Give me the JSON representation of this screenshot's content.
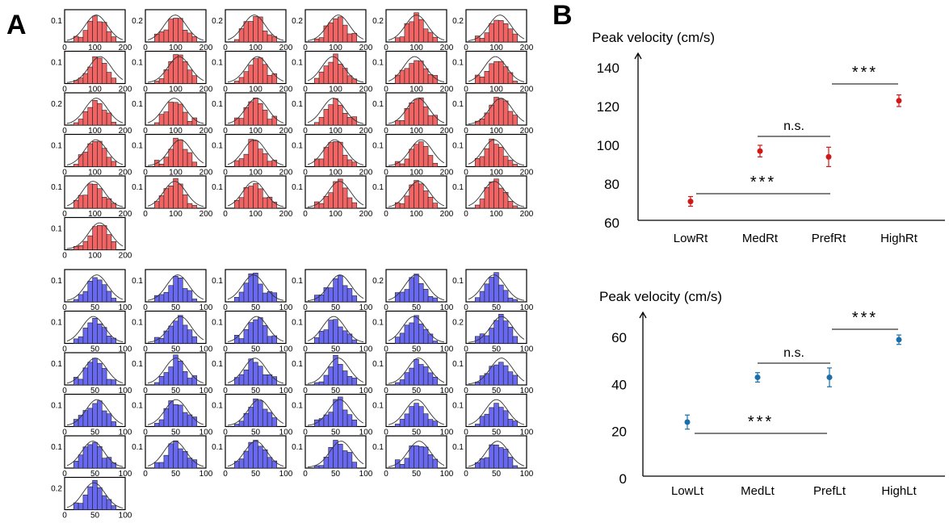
{
  "panel_a_label": "A",
  "panel_b_label": "B",
  "chart_data": [
    {
      "type": "histogram-grid",
      "panel": "A",
      "group": "red",
      "color": "#f26464",
      "xlim": [
        0,
        200
      ],
      "xticks": [
        "0",
        "100",
        "200"
      ],
      "n_cells": 31,
      "columns": 6,
      "ytick_labels_by_row": [
        [
          "0.1",
          "0.2",
          "0.2",
          "0.2",
          "0.2",
          "0.2"
        ],
        [
          "0.1",
          "0.1",
          "0.1",
          "0.1",
          "0.1",
          "0.1"
        ],
        [
          "0.2",
          "0.1",
          "0.1",
          "0.1",
          "0.1",
          "0.1"
        ],
        [
          "0.1",
          "0.1",
          "0.1",
          "0.1",
          "0.1",
          "0.1"
        ],
        [
          "0.1",
          "0.1",
          "0.1",
          "0.1",
          "0.1",
          "0.1"
        ],
        [
          "0.1"
        ]
      ]
    },
    {
      "type": "histogram-grid",
      "panel": "A",
      "group": "blue",
      "color": "#6868f0",
      "xlim": [
        0,
        100
      ],
      "xticks": [
        "0",
        "50",
        "100"
      ],
      "n_cells": 31,
      "columns": 6,
      "ytick_labels_by_row": [
        [
          "0.1",
          "0.1",
          "0.1",
          "0.1",
          "0.2",
          "0.1"
        ],
        [
          "0.1",
          "0.1",
          "0.1",
          "0.1",
          "0.1",
          "0.2"
        ],
        [
          "0.1",
          "0.1",
          "0.1",
          "0.1",
          "0.1",
          "0.1"
        ],
        [
          "0.1",
          "0.1",
          "0.1",
          "0.1",
          "0.1",
          "0.1"
        ],
        [
          "0.1",
          "0.1",
          "0.1",
          "0.1",
          "0.1",
          "0.1"
        ],
        [
          "0.2"
        ]
      ]
    },
    {
      "type": "scatter",
      "panel": "B",
      "title": "Peak velocity (cm/s)",
      "categories": [
        "LowRt",
        "MedRt",
        "PrefRt",
        "HighRt"
      ],
      "values": [
        71,
        97,
        94,
        123
      ],
      "errors": [
        2.5,
        3,
        5,
        3
      ],
      "ylim": [
        60,
        140
      ],
      "yticks": [
        60,
        80,
        100,
        120,
        140
      ],
      "color": "#d01818",
      "annotations": [
        {
          "from": "LowRt",
          "to": "PrefRt",
          "text": "***"
        },
        {
          "from": "MedRt",
          "to": "PrefRt",
          "text": "n.s."
        },
        {
          "from": "PrefRt",
          "to": "HighRt",
          "text": "***"
        }
      ]
    },
    {
      "type": "scatter",
      "panel": "B",
      "title": "Peak velocity (cm/s)",
      "categories": [
        "LowLt",
        "MedLt",
        "PrefLt",
        "HighLt"
      ],
      "values": [
        24,
        43,
        43,
        59
      ],
      "errors": [
        3,
        2,
        4,
        2
      ],
      "ylim": [
        0,
        60
      ],
      "yticks": [
        0,
        20,
        40,
        60
      ],
      "color": "#1a6faa",
      "annotations": [
        {
          "from": "LowLt",
          "to": "PrefLt",
          "text": "***"
        },
        {
          "from": "MedLt",
          "to": "PrefLt",
          "text": "n.s."
        },
        {
          "from": "PrefLt",
          "to": "HighLt",
          "text": "***"
        }
      ]
    }
  ]
}
